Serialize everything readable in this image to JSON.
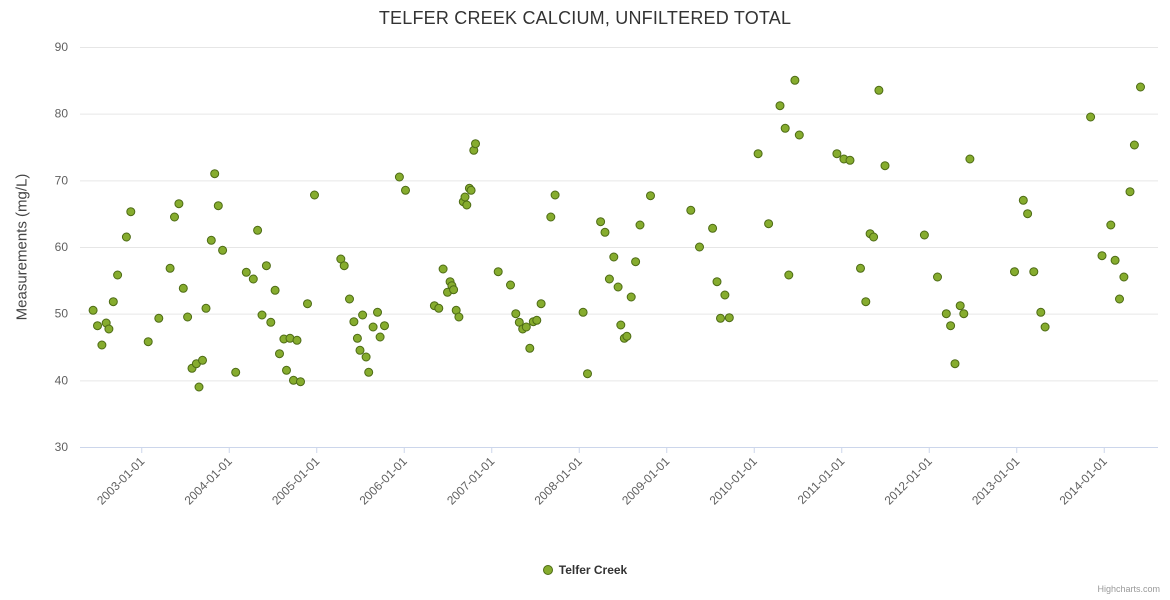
{
  "credit": "Highcharts.com",
  "chart_data": {
    "type": "scatter",
    "title": "TELFER CREEK CALCIUM, UNFILTERED TOTAL",
    "xlabel": "",
    "ylabel": "Measurements (mg/L)",
    "ylim": [
      30,
      90
    ],
    "yticks": [
      30,
      40,
      50,
      60,
      70,
      80,
      90
    ],
    "xlim": [
      2002.3,
      2014.62
    ],
    "xtick_years": [
      2003,
      2004,
      2005,
      2006,
      2007,
      2008,
      2009,
      2010,
      2011,
      2012,
      2013,
      2014
    ],
    "xtick_labels": [
      "2003-01-01",
      "2004-01-01",
      "2005-01-01",
      "2006-01-01",
      "2007-01-01",
      "2008-01-01",
      "2009-01-01",
      "2010-01-01",
      "2011-01-01",
      "2012-01-01",
      "2013-01-01",
      "2014-01-01"
    ],
    "grid": "horizontal",
    "legend_position": "bottom-center",
    "colors": {
      "marker_fill": "#86ac2e",
      "marker_stroke": "#4d6b15",
      "gridline": "#e6e6e6",
      "axis_line": "#ccd6eb",
      "tick_label": "#606060"
    },
    "series": [
      {
        "name": "Telfer Creek",
        "data": [
          [
            2002.45,
            50.5
          ],
          [
            2002.5,
            48.2
          ],
          [
            2002.55,
            45.3
          ],
          [
            2002.6,
            48.6
          ],
          [
            2002.63,
            47.7
          ],
          [
            2002.68,
            51.8
          ],
          [
            2002.73,
            55.8
          ],
          [
            2002.83,
            61.5
          ],
          [
            2002.88,
            65.3
          ],
          [
            2003.08,
            45.8
          ],
          [
            2003.2,
            49.3
          ],
          [
            2003.33,
            56.8
          ],
          [
            2003.38,
            64.5
          ],
          [
            2003.43,
            66.5
          ],
          [
            2003.48,
            53.8
          ],
          [
            2003.53,
            49.5
          ],
          [
            2003.58,
            41.8
          ],
          [
            2003.63,
            42.5
          ],
          [
            2003.66,
            39.0
          ],
          [
            2003.7,
            43.0
          ],
          [
            2003.74,
            50.8
          ],
          [
            2003.8,
            61.0
          ],
          [
            2003.84,
            71.0
          ],
          [
            2003.88,
            66.2
          ],
          [
            2003.93,
            59.5
          ],
          [
            2004.08,
            41.2
          ],
          [
            2004.2,
            56.2
          ],
          [
            2004.28,
            55.2
          ],
          [
            2004.33,
            62.5
          ],
          [
            2004.38,
            49.8
          ],
          [
            2004.43,
            57.2
          ],
          [
            2004.48,
            48.7
          ],
          [
            2004.53,
            53.5
          ],
          [
            2004.58,
            44.0
          ],
          [
            2004.63,
            46.2
          ],
          [
            2004.66,
            41.5
          ],
          [
            2004.7,
            46.3
          ],
          [
            2004.74,
            40.0
          ],
          [
            2004.78,
            46.0
          ],
          [
            2004.82,
            39.8
          ],
          [
            2004.9,
            51.5
          ],
          [
            2004.98,
            67.8
          ],
          [
            2005.28,
            58.2
          ],
          [
            2005.32,
            57.2
          ],
          [
            2005.38,
            52.2
          ],
          [
            2005.43,
            48.8
          ],
          [
            2005.47,
            46.3
          ],
          [
            2005.5,
            44.5
          ],
          [
            2005.53,
            49.8
          ],
          [
            2005.57,
            43.5
          ],
          [
            2005.6,
            41.2
          ],
          [
            2005.65,
            48.0
          ],
          [
            2005.7,
            50.2
          ],
          [
            2005.73,
            46.5
          ],
          [
            2005.78,
            48.2
          ],
          [
            2005.95,
            70.5
          ],
          [
            2006.02,
            68.5
          ],
          [
            2006.35,
            51.2
          ],
          [
            2006.4,
            50.8
          ],
          [
            2006.45,
            56.7
          ],
          [
            2006.5,
            53.2
          ],
          [
            2006.53,
            54.8
          ],
          [
            2006.55,
            54.2
          ],
          [
            2006.57,
            53.6
          ],
          [
            2006.6,
            50.5
          ],
          [
            2006.63,
            49.5
          ],
          [
            2006.68,
            66.8
          ],
          [
            2006.7,
            67.5
          ],
          [
            2006.72,
            66.3
          ],
          [
            2006.75,
            68.8
          ],
          [
            2006.77,
            68.5
          ],
          [
            2006.8,
            74.5
          ],
          [
            2006.82,
            75.5
          ],
          [
            2007.08,
            56.3
          ],
          [
            2007.22,
            54.3
          ],
          [
            2007.28,
            50.0
          ],
          [
            2007.32,
            48.7
          ],
          [
            2007.36,
            47.7
          ],
          [
            2007.4,
            48.0
          ],
          [
            2007.44,
            44.8
          ],
          [
            2007.48,
            48.8
          ],
          [
            2007.52,
            49.0
          ],
          [
            2007.57,
            51.5
          ],
          [
            2007.68,
            64.5
          ],
          [
            2007.73,
            67.8
          ],
          [
            2008.05,
            50.2
          ],
          [
            2008.1,
            41.0
          ],
          [
            2008.25,
            63.8
          ],
          [
            2008.3,
            62.2
          ],
          [
            2008.35,
            55.2
          ],
          [
            2008.4,
            58.5
          ],
          [
            2008.45,
            54.0
          ],
          [
            2008.48,
            48.3
          ],
          [
            2008.52,
            46.3
          ],
          [
            2008.55,
            46.6
          ],
          [
            2008.6,
            52.5
          ],
          [
            2008.65,
            57.8
          ],
          [
            2008.7,
            63.3
          ],
          [
            2008.82,
            67.7
          ],
          [
            2009.28,
            65.5
          ],
          [
            2009.38,
            60.0
          ],
          [
            2009.53,
            62.8
          ],
          [
            2009.58,
            54.8
          ],
          [
            2009.62,
            49.3
          ],
          [
            2009.67,
            52.8
          ],
          [
            2009.72,
            49.4
          ],
          [
            2010.05,
            74.0
          ],
          [
            2010.17,
            63.5
          ],
          [
            2010.3,
            81.2
          ],
          [
            2010.36,
            77.8
          ],
          [
            2010.4,
            55.8
          ],
          [
            2010.47,
            85.0
          ],
          [
            2010.52,
            76.8
          ],
          [
            2010.95,
            74.0
          ],
          [
            2011.03,
            73.2
          ],
          [
            2011.1,
            73.0
          ],
          [
            2011.22,
            56.8
          ],
          [
            2011.28,
            51.8
          ],
          [
            2011.33,
            62.0
          ],
          [
            2011.37,
            61.5
          ],
          [
            2011.43,
            83.5
          ],
          [
            2011.5,
            72.2
          ],
          [
            2011.95,
            61.8
          ],
          [
            2012.1,
            55.5
          ],
          [
            2012.2,
            50.0
          ],
          [
            2012.25,
            48.2
          ],
          [
            2012.3,
            42.5
          ],
          [
            2012.36,
            51.2
          ],
          [
            2012.4,
            50.0
          ],
          [
            2012.47,
            73.2
          ],
          [
            2012.98,
            56.3
          ],
          [
            2013.08,
            67.0
          ],
          [
            2013.13,
            65.0
          ],
          [
            2013.2,
            56.3
          ],
          [
            2013.28,
            50.2
          ],
          [
            2013.33,
            48.0
          ],
          [
            2013.85,
            79.5
          ],
          [
            2013.98,
            58.7
          ],
          [
            2014.08,
            63.3
          ],
          [
            2014.13,
            58.0
          ],
          [
            2014.18,
            52.2
          ],
          [
            2014.23,
            55.5
          ],
          [
            2014.3,
            68.3
          ],
          [
            2014.35,
            75.3
          ],
          [
            2014.42,
            84.0
          ]
        ]
      }
    ]
  }
}
